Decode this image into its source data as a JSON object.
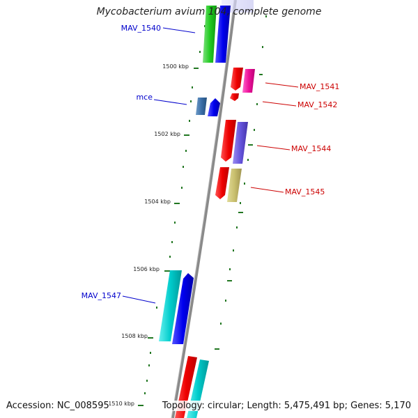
{
  "title": "Mycobacterium avium 104, complete genome",
  "footer": {
    "accession": "Accession: NC_008595",
    "topology": "Topology: circular; Length: 5,475,491 bp; Genes: 5,170"
  },
  "ticks": [
    "1500 kbp",
    "1502 kbp",
    "1504 kbp",
    "1506 kbp",
    "1508 kbp",
    "1510 kbp"
  ],
  "gene_labels": {
    "mav1540": "MAV_1540",
    "mce": "mce",
    "mav1547": "MAV_1547",
    "mav1541": "MAV_1541",
    "mav1542": "MAV_1542",
    "mav1544": "MAV_1544",
    "mav1545": "MAV_1545"
  },
  "colors": {
    "forward_label": "#0000cc",
    "reverse_label": "#cc0000",
    "backbone": "#888888",
    "tick": "#227722"
  }
}
